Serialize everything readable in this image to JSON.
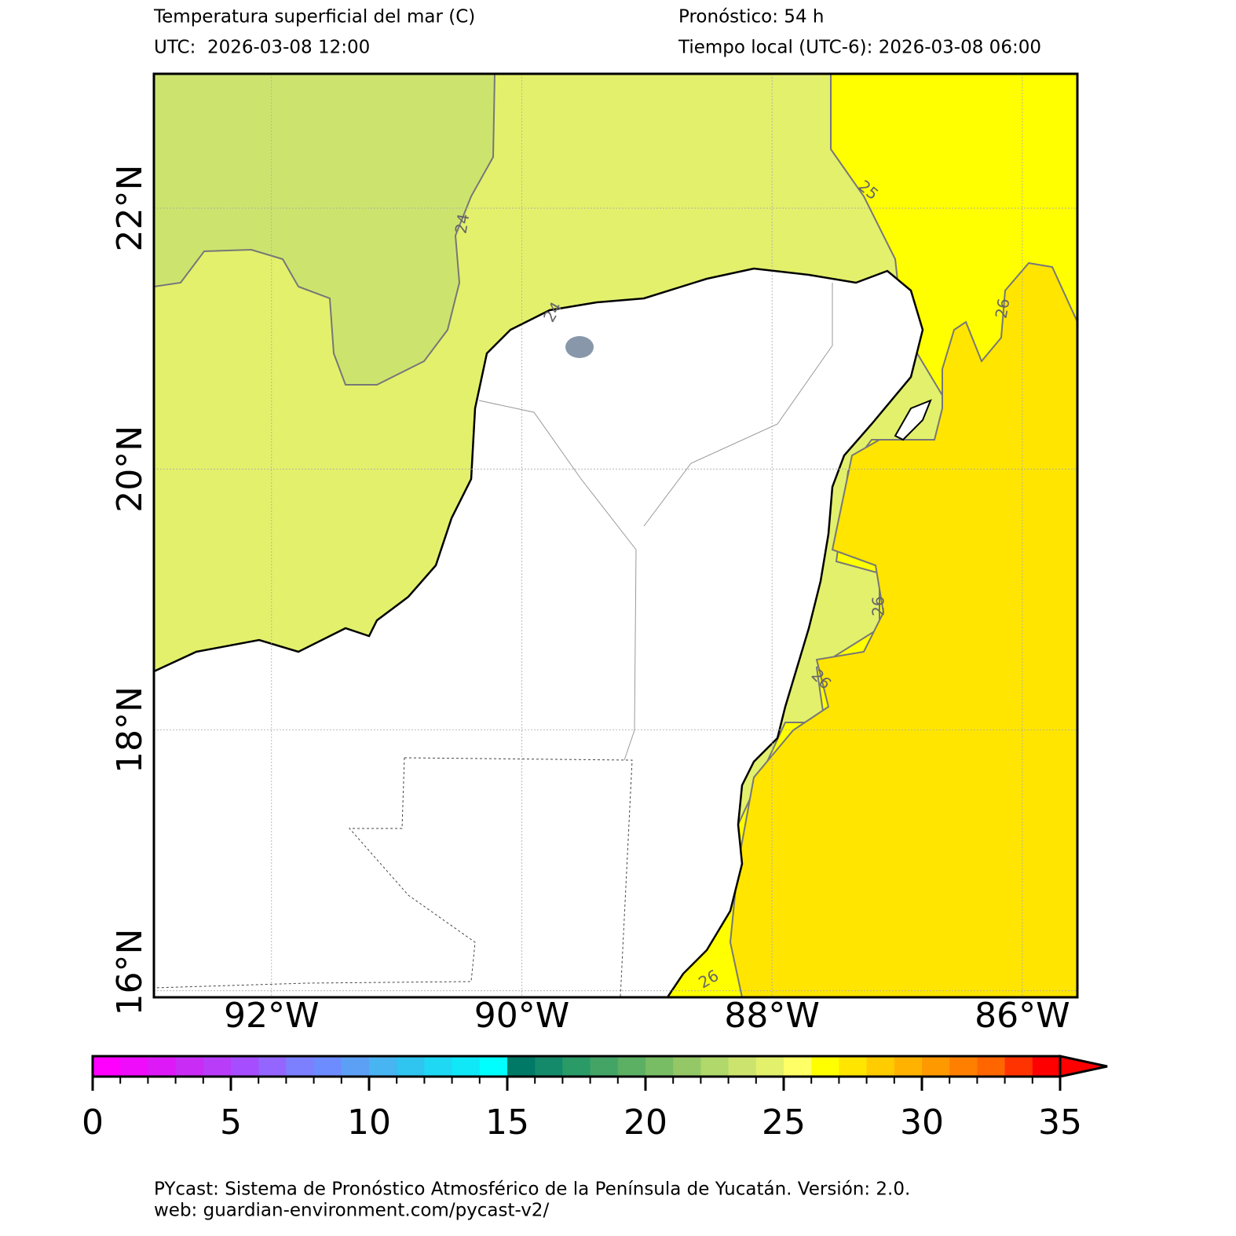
{
  "header": {
    "title": "Temperatura superficial del mar (C)",
    "utc": "UTC:  2026-03-08 12:00",
    "forecast": "Pronóstico: 54 h",
    "local_time": "Tiempo local (UTC-6): 2026-03-08 06:00"
  },
  "map": {
    "xlim": [
      -92.94,
      -85.56
    ],
    "ylim": [
      15.95,
      23.03
    ],
    "xticks": [
      {
        "value": -92,
        "label": "92°W"
      },
      {
        "value": -90,
        "label": "90°W"
      },
      {
        "value": -88,
        "label": "88°W"
      },
      {
        "value": -86,
        "label": "86°W"
      }
    ],
    "yticks": [
      {
        "value": 16,
        "label": "16°N"
      },
      {
        "value": 18,
        "label": "18°N"
      },
      {
        "value": 20,
        "label": "20°N"
      },
      {
        "value": 22,
        "label": "22°N"
      }
    ],
    "grid": true,
    "contour_labels": [
      24,
      24,
      25,
      26,
      26,
      26,
      26
    ]
  },
  "colorbar": {
    "lim": [
      0,
      35
    ],
    "ticks": [
      0,
      5,
      10,
      15,
      20,
      25,
      30,
      35
    ],
    "extend": "max",
    "colors": [
      "#ff00ff",
      "#ee0cfb",
      "#dd1af7",
      "#c92cf5",
      "#b83cf8",
      "#a64dff",
      "#9466ff",
      "#7c80ff",
      "#6c8cff",
      "#5ca0f6",
      "#48b4f2",
      "#30c4f0",
      "#1ed8f4",
      "#10e8f8",
      "#00ffff",
      "#007a66",
      "#148a6a",
      "#2a9a66",
      "#44a466",
      "#5cb064",
      "#78bc64",
      "#94c866",
      "#b0d86a",
      "#cce46e",
      "#e3f06c",
      "#ffff66",
      "#ffff00",
      "#ffe500",
      "#ffcc00",
      "#ffb300",
      "#ff9900",
      "#ff8000",
      "#ff6600",
      "#ff3300",
      "#ff0000"
    ]
  },
  "footer": {
    "line1": "PYcast: Sistema de Pronóstico Atmosférico de la Península de Yucatán. Versión: 2.0.",
    "line2": "web: guardian-environment.com/pycast-v2/"
  }
}
